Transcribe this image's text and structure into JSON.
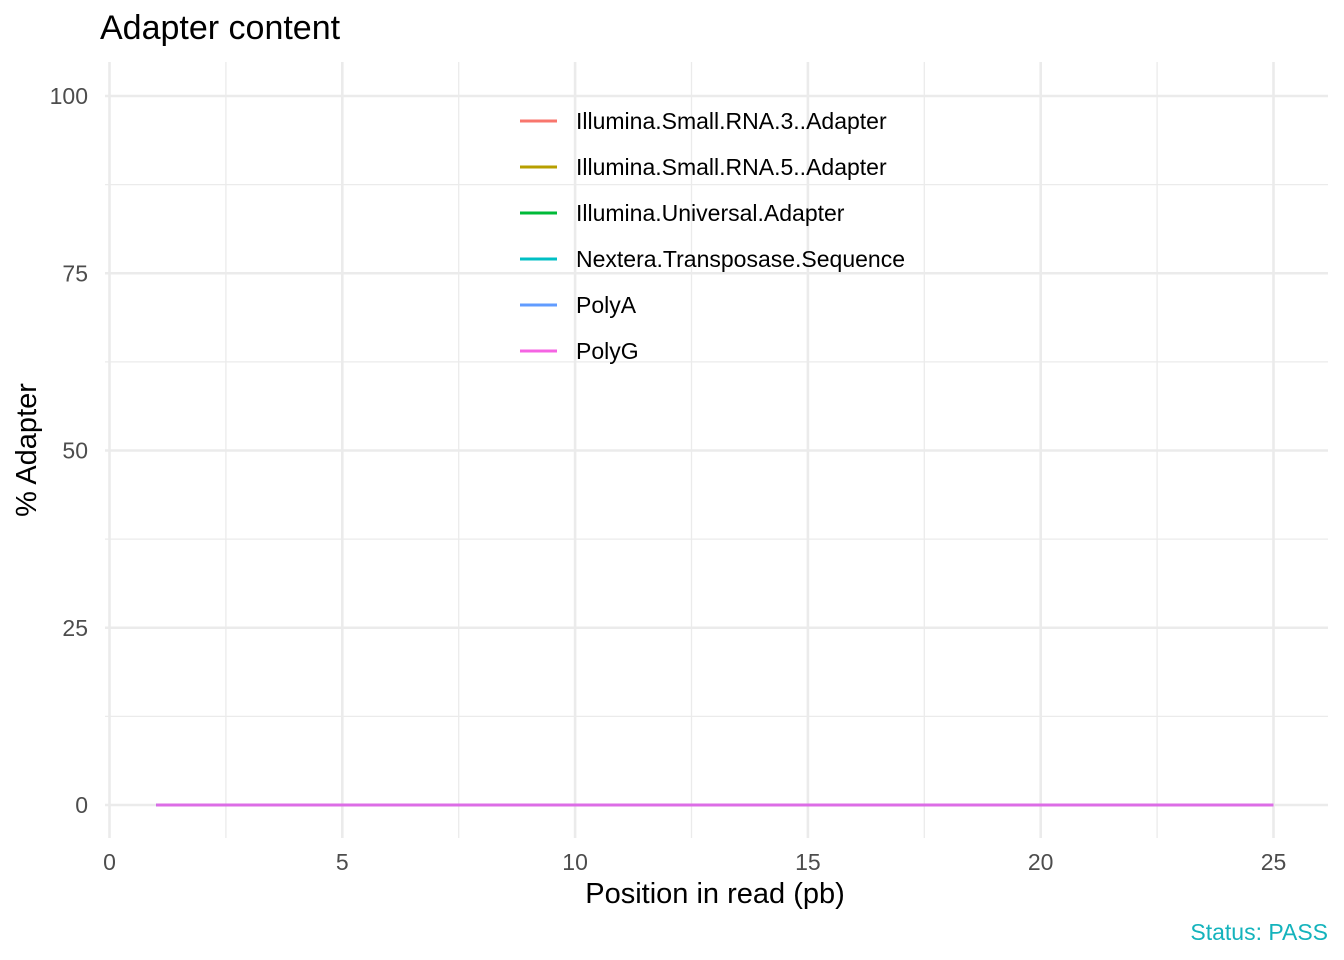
{
  "chart_data": {
    "type": "line",
    "title": "Adapter content",
    "xlabel": "Position in read (pb)",
    "ylabel": "% Adapter",
    "caption": "Status: PASS",
    "caption_color": "#14B3BC",
    "xlim": [
      0,
      25
    ],
    "ylim": [
      0,
      100
    ],
    "x_ticks": [
      0,
      5,
      10,
      15,
      20,
      25
    ],
    "y_ticks": [
      0,
      25,
      50,
      75,
      100
    ],
    "grid": true,
    "legend_position": "inside-top-center",
    "x": [
      1,
      2,
      3,
      4,
      5,
      6,
      7,
      8,
      9,
      10,
      11,
      12,
      13,
      14,
      15,
      16,
      17,
      18,
      19,
      20,
      21,
      22,
      23,
      24,
      25
    ],
    "series": [
      {
        "name": "Illumina.Small.RNA.3..Adapter",
        "color": "#F8766D",
        "values": [
          0,
          0,
          0,
          0,
          0,
          0,
          0,
          0,
          0,
          0,
          0,
          0,
          0,
          0,
          0,
          0,
          0,
          0,
          0,
          0,
          0,
          0,
          0,
          0,
          0
        ]
      },
      {
        "name": "Illumina.Small.RNA.5..Adapter",
        "color": "#B79F00",
        "values": [
          0,
          0,
          0,
          0,
          0,
          0,
          0,
          0,
          0,
          0,
          0,
          0,
          0,
          0,
          0,
          0,
          0,
          0,
          0,
          0,
          0,
          0,
          0,
          0,
          0
        ]
      },
      {
        "name": "Illumina.Universal.Adapter",
        "color": "#00BA38",
        "values": [
          0,
          0,
          0,
          0,
          0,
          0,
          0,
          0,
          0,
          0,
          0,
          0,
          0,
          0,
          0,
          0,
          0,
          0,
          0,
          0,
          0,
          0,
          0,
          0,
          0
        ]
      },
      {
        "name": "Nextera.Transposase.Sequence",
        "color": "#00BFC4",
        "values": [
          0,
          0,
          0,
          0,
          0,
          0,
          0,
          0,
          0,
          0,
          0,
          0,
          0,
          0,
          0,
          0,
          0,
          0,
          0,
          0,
          0,
          0,
          0,
          0,
          0
        ]
      },
      {
        "name": "PolyA",
        "color": "#619CFF",
        "values": [
          0,
          0,
          0,
          0,
          0,
          0,
          0,
          0,
          0,
          0,
          0,
          0,
          0,
          0,
          0,
          0,
          0,
          0,
          0,
          0,
          0,
          0,
          0,
          0,
          0
        ]
      },
      {
        "name": "PolyG",
        "color": "#F564E3",
        "values": [
          0,
          0,
          0,
          0,
          0,
          0,
          0,
          0,
          0,
          0,
          0,
          0,
          0,
          0,
          0,
          0,
          0,
          0,
          0,
          0,
          0,
          0,
          0,
          0,
          0
        ]
      }
    ]
  }
}
